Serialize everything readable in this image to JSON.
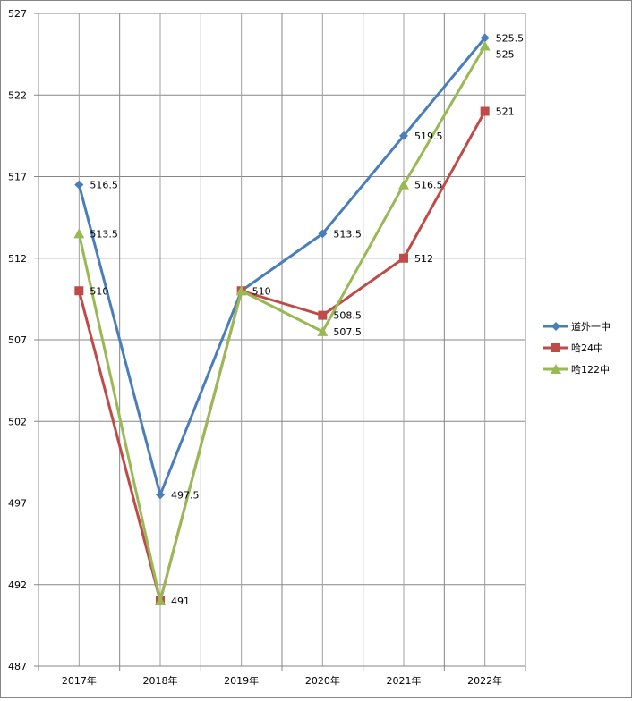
{
  "chart_data": {
    "type": "line",
    "title": "",
    "xlabel": "",
    "ylabel": "",
    "categories": [
      "2017年",
      "2018年",
      "2019年",
      "2020年",
      "2021年",
      "2022年"
    ],
    "ylim": [
      487,
      527
    ],
    "yticks": [
      487,
      492,
      497,
      502,
      507,
      512,
      517,
      522,
      527
    ],
    "grid": true,
    "legend_position": "right",
    "series": [
      {
        "name": "道外一中",
        "color": "#4A7EBB",
        "marker": "diamond",
        "values": [
          516.5,
          497.5,
          510,
          513.5,
          519.5,
          525.5
        ],
        "labels": [
          "516.5",
          "497.5",
          "",
          "513.5",
          "519.5",
          "525.5"
        ]
      },
      {
        "name": "哈24中",
        "color": "#BE4B48",
        "marker": "square",
        "values": [
          510,
          491,
          510,
          508.5,
          512,
          521
        ],
        "labels": [
          "510",
          "491",
          "510",
          "508.5",
          "512",
          "521"
        ]
      },
      {
        "name": "哈122中",
        "color": "#98B954",
        "marker": "triangle",
        "values": [
          513.5,
          491,
          510,
          507.5,
          516.5,
          525
        ],
        "labels": [
          "513.5",
          "",
          "",
          "507.5",
          "516.5",
          "525"
        ]
      }
    ]
  }
}
